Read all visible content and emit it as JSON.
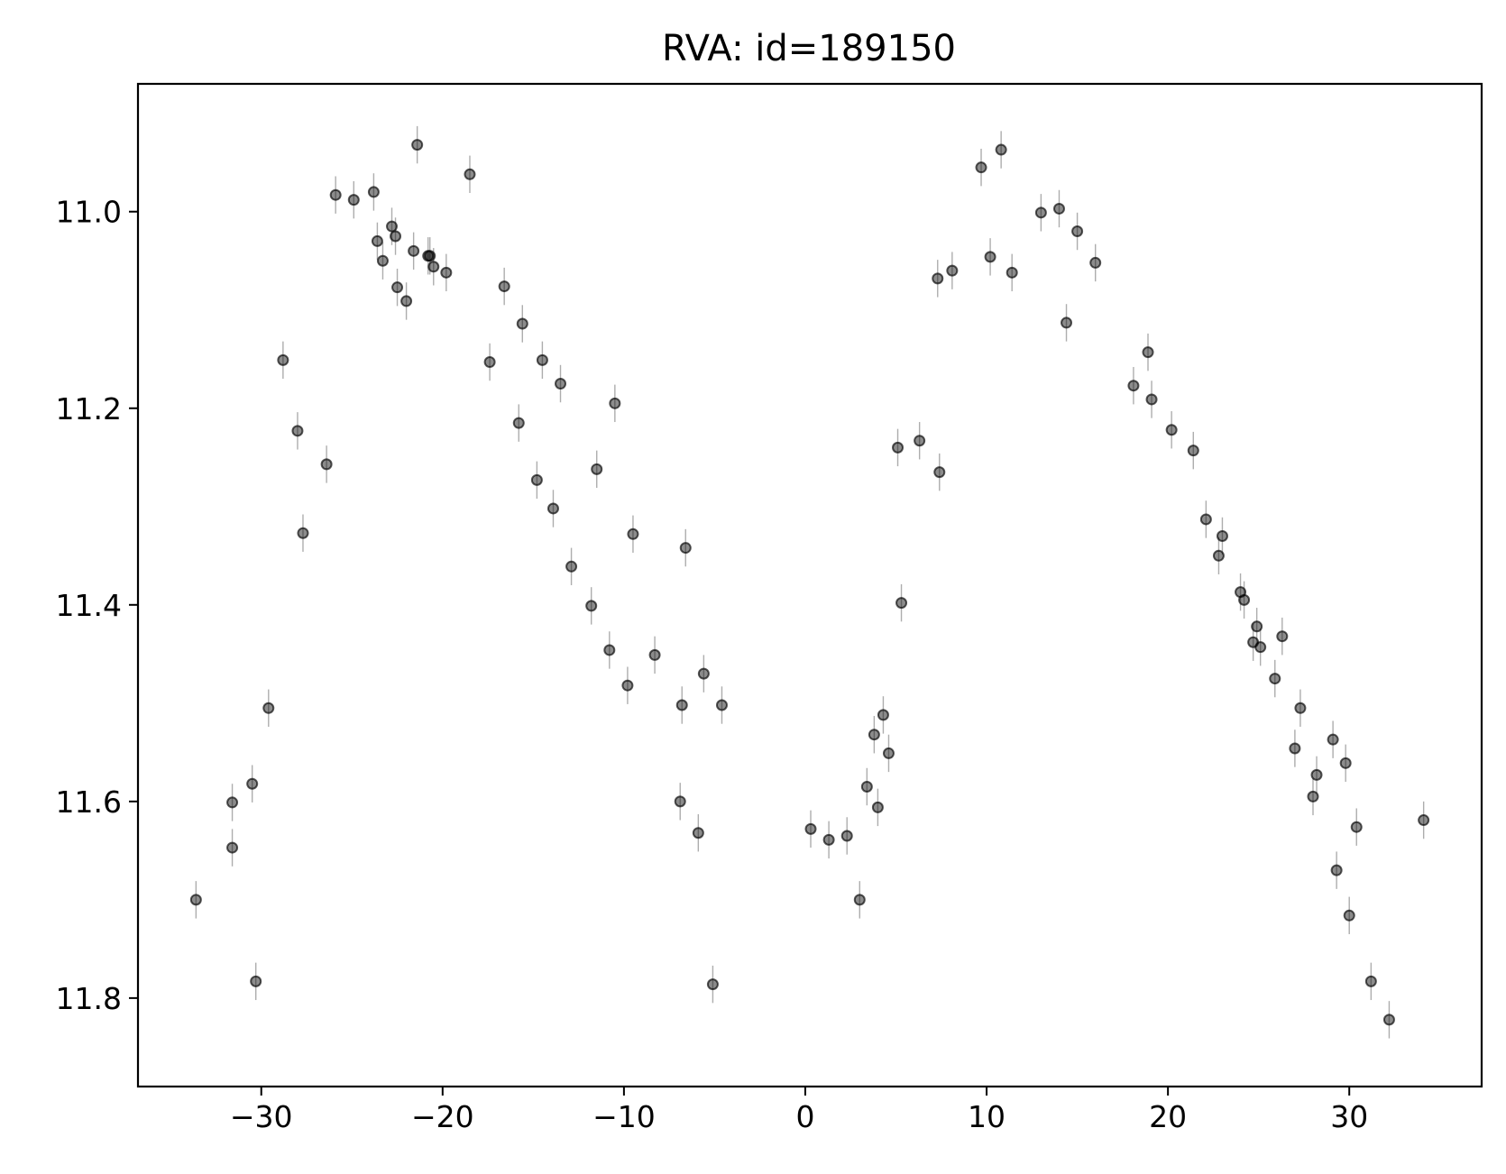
{
  "chart_data": {
    "type": "scatter",
    "title": "RVA: id=189150",
    "xlabel": "",
    "ylabel": "",
    "xlim": [
      -36.8,
      37.3
    ],
    "ylim": [
      11.89,
      10.87
    ],
    "y_inverted": true,
    "grid": false,
    "xticks": [
      -30,
      -20,
      -10,
      0,
      10,
      20,
      30
    ],
    "xtick_labels": [
      "−30",
      "−20",
      "−10",
      "0",
      "10",
      "20",
      "30"
    ],
    "yticks": [
      11.0,
      11.2,
      11.4,
      11.6,
      11.8
    ],
    "ytick_labels": [
      "11.0",
      "11.2",
      "11.4",
      "11.6",
      "11.8"
    ],
    "marker_color": "#000000",
    "errorbar_color": "#999999",
    "error": 0.019,
    "series": [
      {
        "points": [
          [
            -33.6,
            11.7
          ],
          [
            -31.6,
            11.601
          ],
          [
            -31.6,
            11.647
          ],
          [
            -30.5,
            11.582
          ],
          [
            -30.3,
            11.783
          ],
          [
            -29.6,
            11.505
          ],
          [
            -28.8,
            11.151
          ],
          [
            -28.0,
            11.223
          ],
          [
            -27.7,
            11.327
          ],
          [
            -26.4,
            11.257
          ],
          [
            -25.9,
            10.983
          ],
          [
            -24.9,
            10.988
          ],
          [
            -23.8,
            10.98
          ],
          [
            -23.6,
            11.03
          ],
          [
            -23.3,
            11.05
          ],
          [
            -22.8,
            11.015
          ],
          [
            -22.6,
            11.025
          ],
          [
            -22.5,
            11.077
          ],
          [
            -22.0,
            11.091
          ],
          [
            -21.6,
            11.04
          ],
          [
            -21.4,
            10.932
          ],
          [
            -20.8,
            11.045
          ],
          [
            -20.7,
            11.045
          ],
          [
            -20.5,
            11.056
          ],
          [
            -19.8,
            11.062
          ],
          [
            -18.5,
            10.962
          ],
          [
            -17.4,
            11.153
          ],
          [
            -16.6,
            11.076
          ],
          [
            -15.8,
            11.215
          ],
          [
            -15.6,
            11.114
          ],
          [
            -14.8,
            11.273
          ],
          [
            -14.5,
            11.151
          ],
          [
            -13.9,
            11.302
          ],
          [
            -13.5,
            11.175
          ],
          [
            -12.9,
            11.361
          ],
          [
            -11.8,
            11.401
          ],
          [
            -11.5,
            11.262
          ],
          [
            -10.8,
            11.446
          ],
          [
            -10.5,
            11.195
          ],
          [
            -9.8,
            11.482
          ],
          [
            -9.5,
            11.328
          ],
          [
            -8.3,
            11.451
          ],
          [
            -6.9,
            11.6
          ],
          [
            -6.8,
            11.502
          ],
          [
            -6.6,
            11.342
          ],
          [
            -5.9,
            11.632
          ],
          [
            -5.6,
            11.47
          ],
          [
            -5.1,
            11.786
          ],
          [
            -4.6,
            11.502
          ],
          [
            0.3,
            11.628
          ],
          [
            1.3,
            11.639
          ],
          [
            2.3,
            11.635
          ],
          [
            3.0,
            11.7
          ],
          [
            3.4,
            11.585
          ],
          [
            3.8,
            11.532
          ],
          [
            4.0,
            11.606
          ],
          [
            4.3,
            11.512
          ],
          [
            4.6,
            11.551
          ],
          [
            5.1,
            11.24
          ],
          [
            5.3,
            11.398
          ],
          [
            6.3,
            11.233
          ],
          [
            7.3,
            11.068
          ],
          [
            7.4,
            11.265
          ],
          [
            8.1,
            11.06
          ],
          [
            9.7,
            10.955
          ],
          [
            10.2,
            11.046
          ],
          [
            10.8,
            10.937
          ],
          [
            11.4,
            11.062
          ],
          [
            13.0,
            11.001
          ],
          [
            14.0,
            10.997
          ],
          [
            14.4,
            11.113
          ],
          [
            15.0,
            11.02
          ],
          [
            16.0,
            11.052
          ],
          [
            18.1,
            11.177
          ],
          [
            18.9,
            11.143
          ],
          [
            19.1,
            11.191
          ],
          [
            20.2,
            11.222
          ],
          [
            21.4,
            11.243
          ],
          [
            22.1,
            11.313
          ],
          [
            22.8,
            11.35
          ],
          [
            23.0,
            11.33
          ],
          [
            24.0,
            11.387
          ],
          [
            24.2,
            11.395
          ],
          [
            24.7,
            11.438
          ],
          [
            24.9,
            11.422
          ],
          [
            25.1,
            11.443
          ],
          [
            25.9,
            11.475
          ],
          [
            26.3,
            11.432
          ],
          [
            27.0,
            11.546
          ],
          [
            27.3,
            11.505
          ],
          [
            28.0,
            11.595
          ],
          [
            28.2,
            11.573
          ],
          [
            29.1,
            11.537
          ],
          [
            29.3,
            11.67
          ],
          [
            29.8,
            11.561
          ],
          [
            30.0,
            11.716
          ],
          [
            30.4,
            11.626
          ],
          [
            31.2,
            11.783
          ],
          [
            32.2,
            11.822
          ],
          [
            34.1,
            11.619
          ]
        ]
      }
    ]
  }
}
